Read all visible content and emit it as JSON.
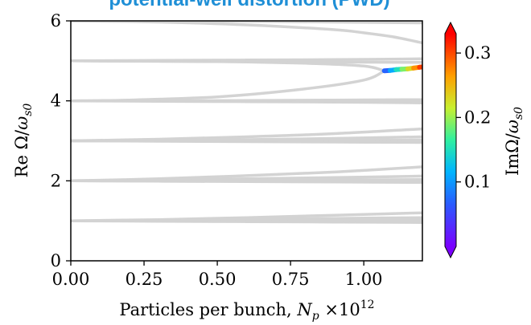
{
  "chart_data": {
    "type": "line",
    "title": "potential-well distortion (PWD)",
    "xlabel": "Particles per bunch, N_p ×10^12",
    "ylabel": "Re Ω/ω_s0",
    "colorbar_label": "ImΩ/ω_s0",
    "xlim": [
      0,
      1.2
    ],
    "ylim": [
      0,
      6
    ],
    "xticks": [
      "0.00",
      "0.25",
      "0.50",
      "0.75",
      "1.00"
    ],
    "yticks": [
      "0",
      "2",
      "4",
      "6"
    ],
    "colorbar_ticks": [
      "0.1",
      "0.2",
      "0.3"
    ],
    "colorbar_range": [
      0,
      0.33
    ],
    "mode_color": "#d3d3d3",
    "grid": false,
    "modes": [
      {
        "x": [
          0,
          0.3,
          0.6,
          0.9,
          1.2
        ],
        "y": [
          1.0,
          1.03,
          1.08,
          1.14,
          1.2
        ]
      },
      {
        "x": [
          0,
          0.3,
          0.6,
          0.9,
          1.2
        ],
        "y": [
          1.0,
          1.02,
          1.04,
          1.06,
          1.08
        ]
      },
      {
        "x": [
          0,
          0.3,
          0.6,
          0.9,
          1.2
        ],
        "y": [
          1.0,
          1.0,
          1.01,
          1.02,
          1.03
        ]
      },
      {
        "x": [
          0,
          0.3,
          0.6,
          0.9,
          1.2
        ],
        "y": [
          1.0,
          0.99,
          0.98,
          0.97,
          0.96
        ]
      },
      {
        "x": [
          0,
          0.3,
          0.6,
          0.9,
          1.2
        ],
        "y": [
          2.0,
          2.05,
          2.13,
          2.22,
          2.35
        ]
      },
      {
        "x": [
          0,
          0.3,
          0.6,
          0.9,
          1.2
        ],
        "y": [
          2.0,
          2.02,
          2.05,
          2.08,
          2.12
        ]
      },
      {
        "x": [
          0,
          0.3,
          0.6,
          0.9,
          1.2
        ],
        "y": [
          2.0,
          2.0,
          2.01,
          2.02,
          2.03
        ]
      },
      {
        "x": [
          0,
          0.3,
          0.6,
          0.9,
          1.2
        ],
        "y": [
          2.0,
          1.99,
          1.98,
          1.97,
          1.96
        ]
      },
      {
        "x": [
          0,
          0.3,
          0.6,
          0.9,
          1.2
        ],
        "y": [
          3.0,
          3.04,
          3.1,
          3.18,
          3.3
        ]
      },
      {
        "x": [
          0,
          0.3,
          0.6,
          0.9,
          1.2
        ],
        "y": [
          3.0,
          3.01,
          3.03,
          3.06,
          3.1
        ]
      },
      {
        "x": [
          0,
          0.3,
          0.6,
          0.9,
          1.2
        ],
        "y": [
          3.0,
          3.0,
          3.0,
          3.01,
          3.02
        ]
      },
      {
        "x": [
          0,
          0.3,
          0.6,
          0.9,
          1.2
        ],
        "y": [
          3.0,
          2.99,
          2.98,
          2.97,
          2.96
        ]
      },
      {
        "x": [
          0,
          0.3,
          0.6,
          0.9,
          1.2
        ],
        "y": [
          4.0,
          4.0,
          4.01,
          4.02,
          4.03
        ]
      },
      {
        "x": [
          0,
          0.3,
          0.6,
          0.9,
          1.2
        ],
        "y": [
          4.0,
          3.99,
          3.98,
          3.97,
          3.95
        ]
      },
      {
        "x": [
          0,
          0.3,
          0.6,
          0.9,
          1.2
        ],
        "y": [
          4.0,
          4.0,
          3.99,
          3.99,
          3.98
        ]
      },
      {
        "x": [
          0,
          0.2,
          0.5,
          0.8,
          1.0,
          1.07
        ],
        "y": [
          4.0,
          4.02,
          4.1,
          4.3,
          4.52,
          4.75
        ]
      },
      {
        "x": [
          0,
          0.2,
          0.5,
          0.8,
          1.0,
          1.07
        ],
        "y": [
          5.0,
          4.99,
          4.98,
          4.94,
          4.87,
          4.75
        ]
      },
      {
        "x": [
          0,
          0.3,
          0.6,
          0.9,
          1.2
        ],
        "y": [
          5.0,
          4.99,
          4.98,
          4.97,
          4.96
        ]
      },
      {
        "x": [
          0,
          0.3,
          0.6,
          0.9,
          1.2
        ],
        "y": [
          5.0,
          5.01,
          5.02,
          5.03,
          5.05
        ]
      },
      {
        "x": [
          0,
          0.3,
          0.6,
          0.9,
          1.0,
          1.1,
          1.2
        ],
        "y": [
          6.0,
          5.97,
          5.9,
          5.78,
          5.7,
          5.6,
          5.45
        ]
      },
      {
        "x": [
          0,
          0.3,
          0.6,
          0.9,
          1.2
        ],
        "y": [
          6.0,
          6.0,
          5.99,
          5.97,
          5.95
        ]
      }
    ],
    "unstable_mode": {
      "x": [
        1.07,
        1.09,
        1.11,
        1.13,
        1.15,
        1.17,
        1.19,
        1.2
      ],
      "y": [
        4.75,
        4.76,
        4.78,
        4.79,
        4.8,
        4.82,
        4.84,
        4.85
      ],
      "im": [
        0.05,
        0.09,
        0.13,
        0.17,
        0.21,
        0.25,
        0.29,
        0.32
      ]
    }
  }
}
